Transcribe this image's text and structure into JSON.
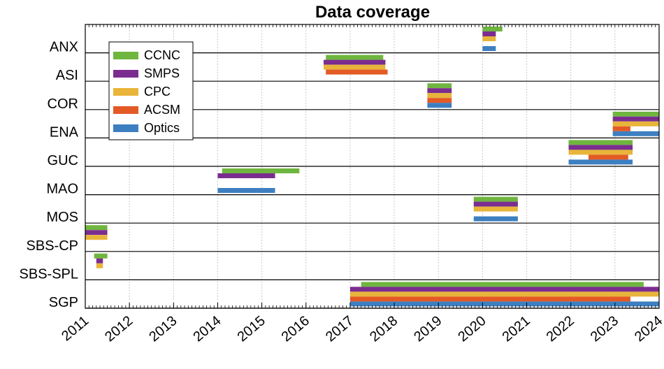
{
  "chart_data": {
    "type": "bar",
    "subtype": "timeline-gantt",
    "title": "Data coverage",
    "xlim": [
      2011,
      2024
    ],
    "xticks": [
      "2011",
      "2012",
      "2013",
      "2014",
      "2015",
      "2016",
      "2017",
      "2018",
      "2019",
      "2020",
      "2021",
      "2022",
      "2023",
      "2024"
    ],
    "sites": [
      "ANX",
      "ASI",
      "COR",
      "ENA",
      "GUC",
      "MAO",
      "MOS",
      "SBS-CP",
      "SBS-SPL",
      "SGP"
    ],
    "series": [
      {
        "name": "CCNC",
        "color": "#6fb63f"
      },
      {
        "name": "SMPS",
        "color": "#7b2d8f"
      },
      {
        "name": "CPC",
        "color": "#e8b53a"
      },
      {
        "name": "ACSM",
        "color": "#e35a25"
      },
      {
        "name": "Optics",
        "color": "#3d7fc1"
      }
    ],
    "intervals": [
      {
        "site": "ANX",
        "series": "CCNC",
        "start": 2020.0,
        "end": 2020.45
      },
      {
        "site": "ANX",
        "series": "SMPS",
        "start": 2020.0,
        "end": 2020.3
      },
      {
        "site": "ANX",
        "series": "CPC",
        "start": 2020.0,
        "end": 2020.3
      },
      {
        "site": "ANX",
        "series": "Optics",
        "start": 2020.0,
        "end": 2020.3
      },
      {
        "site": "ASI",
        "series": "CCNC",
        "start": 2016.45,
        "end": 2017.75
      },
      {
        "site": "ASI",
        "series": "SMPS",
        "start": 2016.4,
        "end": 2017.8
      },
      {
        "site": "ASI",
        "series": "CPC",
        "start": 2016.4,
        "end": 2017.8
      },
      {
        "site": "ASI",
        "series": "ACSM",
        "start": 2016.45,
        "end": 2017.85
      },
      {
        "site": "COR",
        "series": "CCNC",
        "start": 2018.75,
        "end": 2019.3
      },
      {
        "site": "COR",
        "series": "SMPS",
        "start": 2018.75,
        "end": 2019.3
      },
      {
        "site": "COR",
        "series": "CPC",
        "start": 2018.75,
        "end": 2019.3
      },
      {
        "site": "COR",
        "series": "ACSM",
        "start": 2018.75,
        "end": 2019.3
      },
      {
        "site": "COR",
        "series": "Optics",
        "start": 2018.75,
        "end": 2019.3
      },
      {
        "site": "ENA",
        "series": "CCNC",
        "start": 2022.95,
        "end": 2024.0
      },
      {
        "site": "ENA",
        "series": "SMPS",
        "start": 2022.95,
        "end": 2024.0
      },
      {
        "site": "ENA",
        "series": "CPC",
        "start": 2022.95,
        "end": 2024.0
      },
      {
        "site": "ENA",
        "series": "ACSM",
        "start": 2022.95,
        "end": 2023.35
      },
      {
        "site": "ENA",
        "series": "Optics",
        "start": 2022.95,
        "end": 2024.0
      },
      {
        "site": "GUC",
        "series": "CCNC",
        "start": 2021.95,
        "end": 2023.4
      },
      {
        "site": "GUC",
        "series": "SMPS",
        "start": 2021.95,
        "end": 2023.4
      },
      {
        "site": "GUC",
        "series": "CPC",
        "start": 2021.95,
        "end": 2023.4
      },
      {
        "site": "GUC",
        "series": "ACSM",
        "start": 2022.4,
        "end": 2023.3
      },
      {
        "site": "GUC",
        "series": "Optics",
        "start": 2021.95,
        "end": 2023.4
      },
      {
        "site": "MAO",
        "series": "CCNC",
        "start": 2014.1,
        "end": 2015.85
      },
      {
        "site": "MAO",
        "series": "SMPS",
        "start": 2014.0,
        "end": 2015.3
      },
      {
        "site": "MAO",
        "series": "Optics",
        "start": 2014.0,
        "end": 2015.3
      },
      {
        "site": "MOS",
        "series": "CCNC",
        "start": 2019.8,
        "end": 2020.8
      },
      {
        "site": "MOS",
        "series": "SMPS",
        "start": 2019.8,
        "end": 2020.8
      },
      {
        "site": "MOS",
        "series": "CPC",
        "start": 2019.8,
        "end": 2020.8
      },
      {
        "site": "MOS",
        "series": "Optics",
        "start": 2019.8,
        "end": 2020.8
      },
      {
        "site": "SBS-CP",
        "series": "CCNC",
        "start": 2011.0,
        "end": 2011.5
      },
      {
        "site": "SBS-CP",
        "series": "SMPS",
        "start": 2011.0,
        "end": 2011.5
      },
      {
        "site": "SBS-CP",
        "series": "CPC",
        "start": 2011.0,
        "end": 2011.5
      },
      {
        "site": "SBS-SPL",
        "series": "CCNC",
        "start": 2011.2,
        "end": 2011.5
      },
      {
        "site": "SBS-SPL",
        "series": "SMPS",
        "start": 2011.25,
        "end": 2011.4
      },
      {
        "site": "SBS-SPL",
        "series": "CPC",
        "start": 2011.25,
        "end": 2011.4
      },
      {
        "site": "SGP",
        "series": "CCNC",
        "start": 2017.25,
        "end": 2023.65
      },
      {
        "site": "SGP",
        "series": "SMPS",
        "start": 2017.0,
        "end": 2024.0
      },
      {
        "site": "SGP",
        "series": "CPC",
        "start": 2017.0,
        "end": 2024.0
      },
      {
        "site": "SGP",
        "series": "ACSM",
        "start": 2017.0,
        "end": 2023.35
      },
      {
        "site": "SGP",
        "series": "Optics",
        "start": 2017.0,
        "end": 2024.0
      }
    ],
    "grid": true,
    "legend_position": "top-left"
  }
}
